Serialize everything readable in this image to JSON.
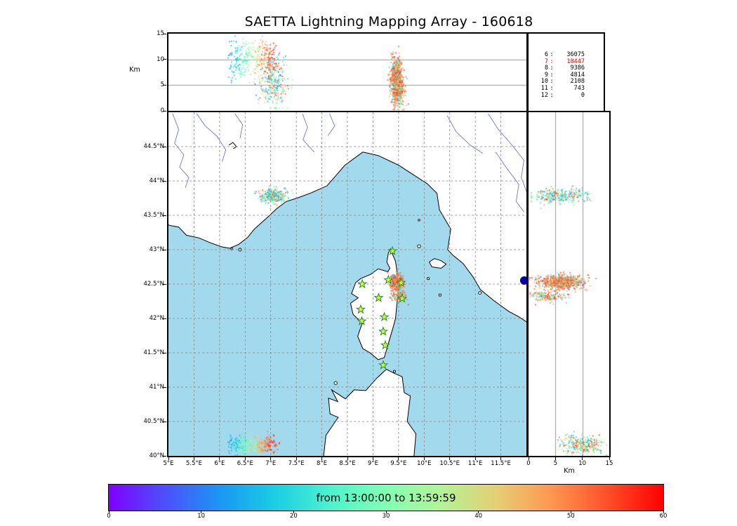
{
  "title": "SAETTA Lightning Mapping Array - 160618",
  "top_panel": {
    "axis_label": "Km",
    "alt_ticks": [
      "0",
      "5",
      "10",
      "15"
    ],
    "alt_range_km": [
      0,
      15
    ],
    "gridlines_km": [
      5,
      10
    ]
  },
  "right_panel": {
    "axis_label": "Km",
    "alt_ticks": [
      "0",
      "5",
      "10",
      "15"
    ],
    "alt_range_km": [
      0,
      15
    ],
    "gridlines_km": [
      5,
      10
    ]
  },
  "stats_panel": {
    "rows": [
      {
        "stations": "6",
        "count": "36075",
        "color": "#000000"
      },
      {
        "stations": "7",
        "count": "18447",
        "color": "#e00000"
      },
      {
        "stations": "8",
        "count": "9386",
        "color": "#000000"
      },
      {
        "stations": "9",
        "count": "4814",
        "color": "#000000"
      },
      {
        "stations": "10",
        "count": "2108",
        "color": "#000000"
      },
      {
        "stations": "11",
        "count": "743",
        "color": "#000000"
      },
      {
        "stations": "12",
        "count": "0",
        "color": "#000000"
      }
    ]
  },
  "map_panel": {
    "lon_range_deg_e": [
      5,
      12
    ],
    "lat_range_deg_n": [
      40,
      45
    ],
    "lat_ticks": [
      {
        "value": 44.5,
        "label": "44.5°N"
      },
      {
        "value": 44.0,
        "label": "44°N"
      },
      {
        "value": 43.5,
        "label": "43.5°N"
      },
      {
        "value": 43.0,
        "label": "43°N"
      },
      {
        "value": 42.5,
        "label": "42.5°N"
      },
      {
        "value": 42.0,
        "label": "42°N"
      },
      {
        "value": 41.5,
        "label": "41.5°N"
      },
      {
        "value": 41.0,
        "label": "41°N"
      },
      {
        "value": 40.5,
        "label": "40.5°N"
      },
      {
        "value": 40.0,
        "label": "40°N"
      }
    ],
    "lon_ticks": [
      {
        "value": 5.0,
        "label": "5°E"
      },
      {
        "value": 5.5,
        "label": "5.5°E"
      },
      {
        "value": 6.0,
        "label": "6°E"
      },
      {
        "value": 6.5,
        "label": "6.5°E"
      },
      {
        "value": 7.0,
        "label": "7°E"
      },
      {
        "value": 7.5,
        "label": "7.5°E"
      },
      {
        "value": 8.0,
        "label": "8°E"
      },
      {
        "value": 8.5,
        "label": "8.5°E"
      },
      {
        "value": 9.0,
        "label": "9°E"
      },
      {
        "value": 9.5,
        "label": "9.5°E"
      },
      {
        "value": 10.0,
        "label": "10°E"
      },
      {
        "value": 10.5,
        "label": "10.5°E"
      },
      {
        "value": 11.0,
        "label": "11°E"
      },
      {
        "value": 11.5,
        "label": "11.5°E"
      }
    ],
    "colors": {
      "sea": "#a3d9ec",
      "land": "#ffffff",
      "coast": "#000000",
      "river": "#6666cc",
      "grid": "#888888",
      "station_fill": "#ccff33",
      "station_stroke": "#2d8a2d",
      "edge_marker": "#000099"
    }
  },
  "colorbar": {
    "label": "from 13:00:00 to 13:59:59",
    "tick_labels": [
      "0",
      "10",
      "20",
      "30",
      "40",
      "50",
      "60"
    ],
    "minutes_range": [
      0,
      60
    ],
    "gradient_stops": [
      "#8000FF",
      "#4D4FFC",
      "#1A96F3",
      "#1ACEE3",
      "#4DF3CE",
      "#80FFB4",
      "#B3F396",
      "#E6CE74",
      "#FF964F",
      "#FF4F28",
      "#FF0000"
    ]
  },
  "chart_data": {
    "type": "scatter",
    "title": "SAETTA Lightning Mapping Array - 160618",
    "time_window": "from 13:00:00 to 13:59:59",
    "color_encoding": "time in minutes after 13:00:00 mapped on rainbow colormap 0-60",
    "sources_by_min_stations": {
      "6": 36075,
      "7": 18447,
      "8": 9386,
      "9": 4814,
      "10": 2108,
      "11": 743,
      "12": 0
    },
    "stations_lon_lat": [
      [
        9.38,
        42.98
      ],
      [
        8.79,
        42.5
      ],
      [
        9.3,
        42.56
      ],
      [
        9.55,
        42.52
      ],
      [
        9.11,
        42.3
      ],
      [
        8.76,
        42.13
      ],
      [
        9.57,
        42.29
      ],
      [
        9.22,
        42.02
      ],
      [
        8.78,
        41.96
      ],
      [
        9.2,
        41.81
      ],
      [
        9.24,
        41.61
      ],
      [
        9.2,
        41.32
      ]
    ],
    "edge_marker": {
      "lat": 42.55,
      "note": "navy dot at boundary between map and altitude-latitude panel"
    },
    "clusters": [
      {
        "name": "cote-azur-storm",
        "count": 300,
        "lon": {
          "mean": 7.05,
          "sd": 0.13
        },
        "lat": {
          "mean": 43.78,
          "sd": 0.05
        },
        "alt": {
          "mean": 6.0,
          "sd": 2.6,
          "min": 0.5,
          "max": 11.5
        },
        "time_modes": [
          {
            "w": 0.7,
            "min": 8,
            "max": 38
          },
          {
            "w": 0.3,
            "min": 38,
            "max": 57
          }
        ]
      },
      {
        "name": "corsica-main-storm",
        "count": 750,
        "lon": {
          "mean": 9.46,
          "sd": 0.055
        },
        "lat": {
          "mean": 42.53,
          "sd": 0.05
        },
        "alt": {
          "mean": 6.0,
          "sd": 2.1,
          "min": 0.2,
          "max": 12.5
        },
        "time_modes": [
          {
            "w": 0.78,
            "min": 42,
            "max": 58
          },
          {
            "w": 0.22,
            "min": 10,
            "max": 40
          }
        ]
      },
      {
        "name": "corsica-south-storm",
        "count": 160,
        "lon": {
          "mean": 9.5,
          "sd": 0.09
        },
        "lat": {
          "mean": 42.32,
          "sd": 0.04
        },
        "alt": {
          "mean": 3.5,
          "sd": 1.6,
          "min": 0.3,
          "max": 7.5
        },
        "time_modes": [
          {
            "w": 0.6,
            "min": 44,
            "max": 58
          },
          {
            "w": 0.4,
            "min": 16,
            "max": 36
          }
        ]
      },
      {
        "name": "sea-southwest-storm",
        "count": 320,
        "lat": {
          "mean": 40.16,
          "sd": 0.07
        },
        "alt": {
          "mean": 10.0,
          "sd": 2.0,
          "min": 5.5,
          "max": 14.5
        },
        "time_lon_gradient": {
          "t_min": 12,
          "t_max": 58,
          "lon_start": 6.22,
          "lon_end": 7.05,
          "lon_jitter": 0.07
        }
      }
    ]
  }
}
